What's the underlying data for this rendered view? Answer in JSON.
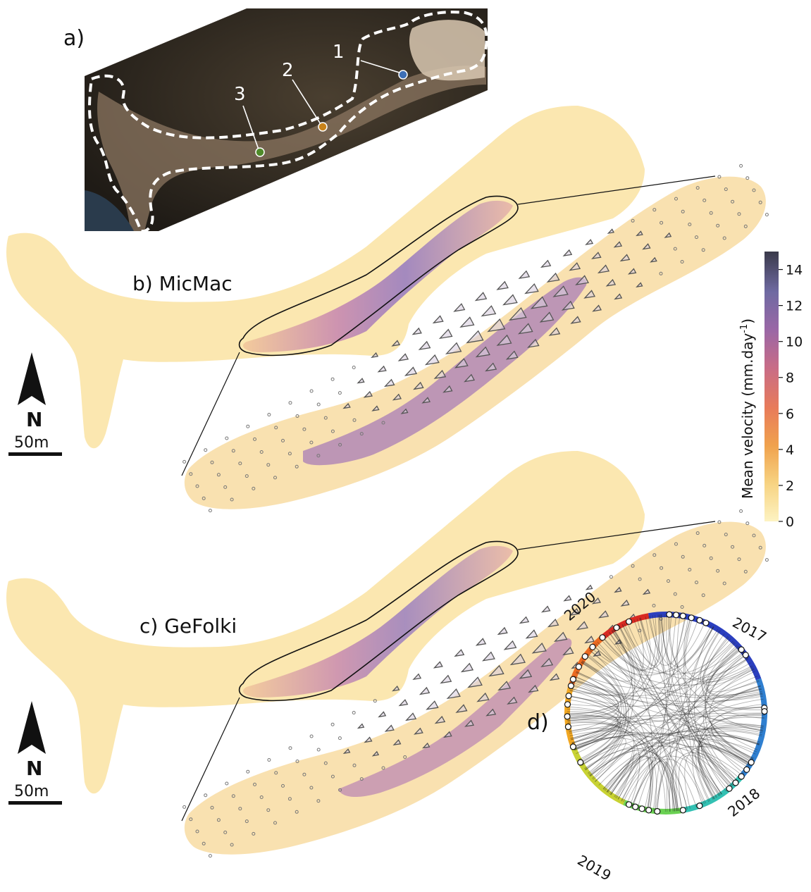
{
  "panels": {
    "a": {
      "label": "a)",
      "points": [
        "1",
        "2",
        "3"
      ],
      "point_colors": [
        "#3d6fb6",
        "#c8831b",
        "#4f8a2a"
      ]
    },
    "b": {
      "label": "b) MicMac"
    },
    "c": {
      "label": "c) GeFolki"
    },
    "d": {
      "label": "d)",
      "years": [
        "2017",
        "2018",
        "2019",
        "2020"
      ]
    }
  },
  "north_arrow": {
    "letter": "N"
  },
  "scale_bar": {
    "label": "50m"
  },
  "colorbar": {
    "title": "Mean velocity (mm.day",
    "title_sup": "-1",
    "title_end": ")",
    "ticks": [
      "0",
      "2",
      "4",
      "6",
      "8",
      "10",
      "12",
      "14"
    ],
    "range": [
      0,
      15
    ],
    "colors": [
      "#fdf3c2",
      "#f7d382",
      "#f0a24d",
      "#e87b5a",
      "#c86c87",
      "#9a67a6",
      "#6f6aa2",
      "#3a3a4a"
    ]
  }
}
